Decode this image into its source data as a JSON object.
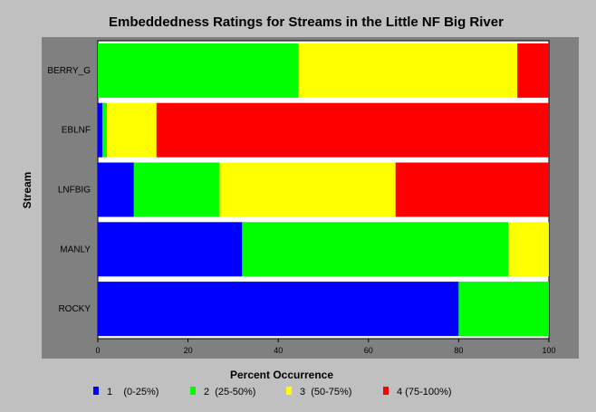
{
  "chart_data": {
    "type": "bar",
    "orientation": "horizontal",
    "stacked": true,
    "title": "Embeddedness Ratings for Streams in the Little NF Big River",
    "xlabel": "Percent Occurrence",
    "ylabel": "Stream",
    "xlim": [
      0,
      100
    ],
    "xticks": [
      0,
      20,
      40,
      60,
      80,
      100
    ],
    "grid": false,
    "legend_position": "bottom",
    "categories": [
      "BERRY_G",
      "EBLNF",
      "LNFBIG",
      "MANLY",
      "ROCKY"
    ],
    "series": [
      {
        "name": "1    (0-25%)",
        "color": "#0000ff",
        "values": [
          0,
          1,
          8,
          32,
          80
        ]
      },
      {
        "name": "2  (25-50%)",
        "color": "#00ff00",
        "values": [
          44.5,
          1,
          19,
          59,
          20
        ]
      },
      {
        "name": "3  (50-75%)",
        "color": "#ffff00",
        "values": [
          48.5,
          11,
          39,
          9,
          0
        ]
      },
      {
        "name": "4 (75-100%)",
        "color": "#ff0000",
        "values": [
          7,
          87,
          34,
          0,
          0
        ]
      }
    ]
  }
}
